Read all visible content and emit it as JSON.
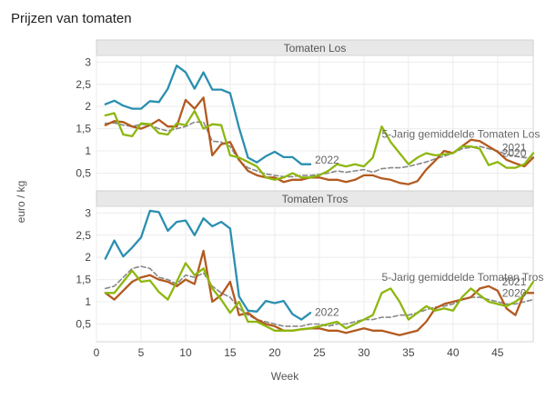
{
  "chart_data": {
    "type": "line",
    "title": "Prijzen van tomaten",
    "xlabel": "Week",
    "ylabel": "euro / kg",
    "xlim": [
      0,
      49
    ],
    "ylim": [
      0.1,
      3.15
    ],
    "xticks": [
      0,
      5,
      10,
      15,
      20,
      25,
      30,
      35,
      40,
      45
    ],
    "yticks": [
      0.5,
      1,
      1.5,
      2,
      2.5,
      3
    ],
    "ytick_labels": [
      "0,5",
      "1",
      "1,5",
      "2",
      "2,5",
      "3"
    ],
    "grid": true,
    "colors": {
      "2022": "#2a8fb0",
      "2021": "#8db70f",
      "2020": "#b35a1f",
      "avg": "#888888"
    },
    "panels": [
      {
        "name": "Tomaten Los",
        "annotations": [
          {
            "text": "2022",
            "x": 24.5,
            "y": 0.8
          },
          {
            "text": "5-Jarig gemiddelde Tomaten Los",
            "x": 32,
            "y": 1.38
          },
          {
            "text": "2021",
            "x": 45.5,
            "y": 1.07
          },
          {
            "text": "2020",
            "x": 45.5,
            "y": 0.95
          }
        ],
        "series": [
          {
            "key": "2022",
            "x": [
              1,
              2,
              3,
              4,
              5,
              6,
              7,
              8,
              9,
              10,
              11,
              12,
              13,
              14,
              15,
              16,
              17,
              18,
              19,
              20,
              21,
              22,
              23,
              24
            ],
            "values": [
              2.05,
              2.13,
              2.02,
              1.95,
              1.95,
              2.12,
              2.1,
              2.4,
              2.92,
              2.77,
              2.4,
              2.77,
              2.38,
              2.38,
              2.3,
              1.52,
              0.85,
              0.74,
              0.88,
              0.98,
              0.86,
              0.86,
              0.7,
              0.7
            ]
          },
          {
            "key": "2021",
            "x": [
              1,
              2,
              3,
              4,
              5,
              6,
              7,
              8,
              9,
              10,
              11,
              12,
              13,
              14,
              15,
              16,
              17,
              18,
              19,
              20,
              21,
              22,
              23,
              24,
              25,
              26,
              27,
              28,
              29,
              30,
              31,
              32,
              33,
              34,
              35,
              36,
              37,
              38,
              39,
              40,
              41,
              42,
              43,
              44,
              45,
              46,
              47,
              48,
              49
            ],
            "values": [
              1.8,
              1.85,
              1.37,
              1.33,
              1.62,
              1.6,
              1.4,
              1.37,
              1.62,
              1.58,
              1.9,
              1.5,
              1.6,
              1.58,
              0.9,
              0.85,
              0.75,
              0.65,
              0.4,
              0.35,
              0.4,
              0.5,
              0.4,
              0.4,
              0.45,
              0.55,
              0.7,
              0.65,
              0.7,
              0.65,
              0.85,
              1.55,
              1.2,
              0.95,
              0.7,
              0.85,
              0.95,
              0.9,
              0.92,
              0.95,
              1.1,
              1.1,
              1.05,
              0.68,
              0.75,
              0.62,
              0.62,
              0.7,
              0.95
            ]
          },
          {
            "key": "2020",
            "x": [
              1,
              2,
              3,
              4,
              5,
              6,
              7,
              8,
              9,
              10,
              11,
              12,
              13,
              14,
              15,
              16,
              17,
              18,
              19,
              20,
              21,
              22,
              23,
              24,
              25,
              26,
              27,
              28,
              29,
              30,
              31,
              32,
              33,
              34,
              35,
              36,
              37,
              38,
              39,
              40,
              41,
              42,
              43,
              44,
              45,
              46,
              47,
              48,
              49
            ],
            "values": [
              1.58,
              1.67,
              1.65,
              1.55,
              1.5,
              1.58,
              1.7,
              1.55,
              1.55,
              2.15,
              1.95,
              2.2,
              0.9,
              1.15,
              1.2,
              0.8,
              0.55,
              0.45,
              0.4,
              0.4,
              0.3,
              0.35,
              0.35,
              0.4,
              0.4,
              0.35,
              0.35,
              0.3,
              0.35,
              0.45,
              0.45,
              0.38,
              0.35,
              0.28,
              0.25,
              0.32,
              0.58,
              0.78,
              1.0,
              0.95,
              1.1,
              1.25,
              1.22,
              1.1,
              0.98,
              0.8,
              0.72,
              0.65,
              0.85
            ]
          },
          {
            "key": "avg",
            "x": [
              1,
              2,
              3,
              4,
              5,
              6,
              7,
              8,
              9,
              10,
              11,
              12,
              13,
              14,
              15,
              16,
              17,
              18,
              19,
              20,
              21,
              22,
              23,
              24,
              25,
              26,
              27,
              28,
              29,
              30,
              31,
              32,
              33,
              34,
              35,
              36,
              37,
              38,
              39,
              40,
              41,
              42,
              43,
              44,
              45,
              46,
              47,
              48,
              49
            ],
            "values": [
              1.62,
              1.63,
              1.58,
              1.55,
              1.6,
              1.58,
              1.5,
              1.45,
              1.5,
              1.55,
              1.65,
              1.65,
              1.22,
              1.2,
              1.1,
              0.78,
              0.62,
              0.55,
              0.48,
              0.45,
              0.42,
              0.42,
              0.45,
              0.45,
              0.47,
              0.5,
              0.55,
              0.52,
              0.55,
              0.58,
              0.52,
              0.6,
              0.62,
              0.62,
              0.65,
              0.7,
              0.75,
              0.82,
              0.88,
              0.95,
              1.05,
              1.08,
              1.1,
              1.05,
              1.0,
              0.92,
              0.88,
              0.85,
              0.85
            ]
          }
        ]
      },
      {
        "name": "Tomaten Tros",
        "annotations": [
          {
            "text": "2022",
            "x": 24.5,
            "y": 0.77
          },
          {
            "text": "5-Jarig gemiddelde Tomaten Tros",
            "x": 32,
            "y": 1.55
          },
          {
            "text": "2021",
            "x": 45.5,
            "y": 1.45
          },
          {
            "text": "2020",
            "x": 45.5,
            "y": 1.2
          }
        ],
        "series": [
          {
            "key": "2022",
            "x": [
              1,
              2,
              3,
              4,
              5,
              6,
              7,
              8,
              9,
              10,
              11,
              12,
              13,
              14,
              15,
              16,
              17,
              18,
              19,
              20,
              21,
              22,
              23,
              24
            ],
            "values": [
              1.97,
              2.38,
              2.02,
              2.22,
              2.45,
              3.05,
              3.02,
              2.6,
              2.8,
              2.83,
              2.5,
              2.88,
              2.7,
              2.8,
              2.65,
              1.12,
              0.8,
              0.78,
              1.02,
              0.97,
              1.02,
              0.72,
              0.6,
              0.75
            ]
          },
          {
            "key": "2021",
            "x": [
              1,
              2,
              3,
              4,
              5,
              6,
              7,
              8,
              9,
              10,
              11,
              12,
              13,
              14,
              15,
              16,
              17,
              18,
              19,
              20,
              21,
              22,
              23,
              24,
              25,
              26,
              27,
              28,
              29,
              30,
              31,
              32,
              33,
              34,
              35,
              36,
              37,
              38,
              39,
              40,
              41,
              42,
              43,
              44,
              45,
              46,
              47,
              48,
              49
            ],
            "values": [
              1.2,
              1.2,
              1.45,
              1.7,
              1.45,
              1.48,
              1.22,
              1.05,
              1.45,
              1.87,
              1.6,
              1.75,
              1.3,
              1.05,
              0.75,
              1.0,
              0.55,
              0.55,
              0.45,
              0.35,
              0.35,
              0.35,
              0.38,
              0.4,
              0.45,
              0.5,
              0.55,
              0.4,
              0.5,
              0.6,
              0.7,
              1.2,
              1.3,
              1.0,
              0.6,
              0.75,
              0.9,
              0.8,
              0.85,
              0.8,
              1.1,
              1.3,
              1.15,
              1.0,
              0.95,
              0.9,
              1.0,
              1.15,
              1.45
            ]
          },
          {
            "key": "2020",
            "x": [
              1,
              2,
              3,
              4,
              5,
              6,
              7,
              8,
              9,
              10,
              11,
              12,
              13,
              14,
              15,
              16,
              17,
              18,
              19,
              20,
              21,
              22,
              23,
              24,
              25,
              26,
              27,
              28,
              29,
              30,
              31,
              32,
              33,
              34,
              35,
              36,
              37,
              38,
              39,
              40,
              41,
              42,
              43,
              44,
              45,
              46,
              47,
              48,
              49
            ],
            "values": [
              1.2,
              1.05,
              1.25,
              1.45,
              1.55,
              1.6,
              1.5,
              1.45,
              1.35,
              1.5,
              1.4,
              2.15,
              1.0,
              1.15,
              1.45,
              0.7,
              0.75,
              0.6,
              0.5,
              0.45,
              0.35,
              0.35,
              0.38,
              0.4,
              0.4,
              0.35,
              0.35,
              0.3,
              0.35,
              0.4,
              0.35,
              0.35,
              0.3,
              0.25,
              0.3,
              0.35,
              0.55,
              0.85,
              0.95,
              1.0,
              1.05,
              1.1,
              1.3,
              1.35,
              1.25,
              0.85,
              0.7,
              1.2,
              1.2
            ]
          },
          {
            "key": "avg",
            "x": [
              1,
              2,
              3,
              4,
              5,
              6,
              7,
              8,
              9,
              10,
              11,
              12,
              13,
              14,
              15,
              16,
              17,
              18,
              19,
              20,
              21,
              22,
              23,
              24,
              25,
              26,
              27,
              28,
              29,
              30,
              31,
              32,
              33,
              34,
              35,
              36,
              37,
              38,
              39,
              40,
              41,
              42,
              43,
              44,
              45,
              46,
              47,
              48,
              49
            ],
            "values": [
              1.3,
              1.35,
              1.55,
              1.75,
              1.8,
              1.75,
              1.55,
              1.5,
              1.4,
              1.6,
              1.55,
              1.65,
              1.35,
              1.2,
              1.1,
              0.85,
              0.7,
              0.6,
              0.55,
              0.5,
              0.45,
              0.45,
              0.45,
              0.5,
              0.5,
              0.45,
              0.5,
              0.5,
              0.55,
              0.6,
              0.6,
              0.65,
              0.65,
              0.7,
              0.7,
              0.75,
              0.82,
              0.88,
              0.9,
              0.95,
              1.05,
              1.1,
              1.1,
              1.05,
              1.0,
              0.95,
              0.95,
              1.0,
              1.05
            ]
          }
        ]
      }
    ]
  }
}
